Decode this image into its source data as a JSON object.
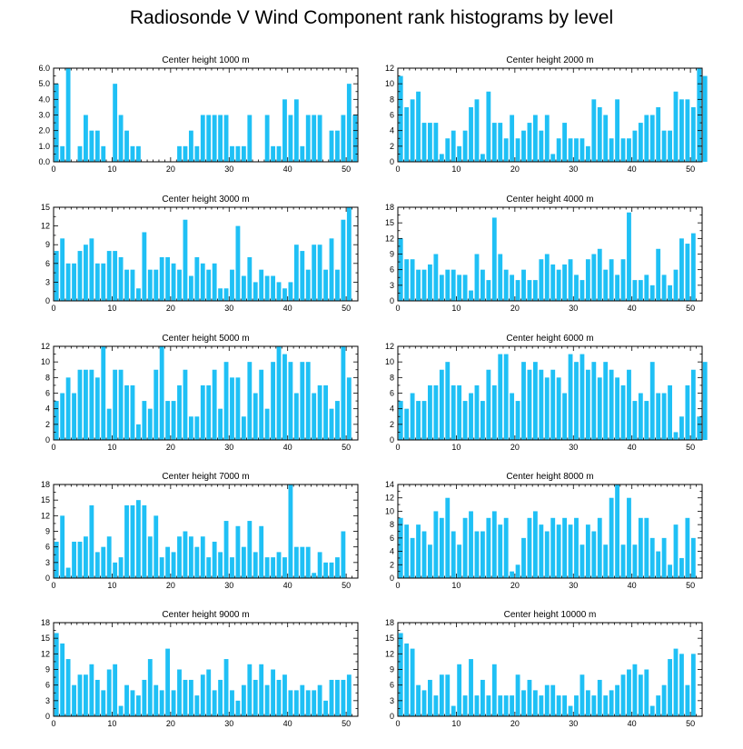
{
  "title": "Radiosonde V Wind Component rank histograms by level",
  "colors": {
    "bar": "#1fc0f5",
    "axis": "#000000",
    "background": "#ffffff"
  },
  "chart_data": [
    {
      "type": "bar",
      "title": "Center height 1000 m",
      "xlim": [
        0,
        52
      ],
      "ylim": [
        0,
        6
      ],
      "xticks": [
        "0",
        "10",
        "20",
        "30",
        "40",
        "50"
      ],
      "yticks": [
        "0.0",
        "1.0",
        "2.0",
        "3.0",
        "4.0",
        "5.0",
        "6.0"
      ],
      "values": [
        5,
        1,
        6,
        0,
        1,
        3,
        2,
        2,
        1,
        0,
        5,
        3,
        2,
        1,
        1,
        0,
        0,
        0,
        0,
        0,
        0,
        1,
        1,
        2,
        1,
        3,
        3,
        3,
        3,
        3,
        1,
        1,
        1,
        3,
        0,
        0,
        3,
        1,
        1,
        4,
        3,
        4,
        1,
        3,
        3,
        3,
        0,
        2,
        2,
        3,
        5,
        3
      ]
    },
    {
      "type": "bar",
      "title": "Center height 2000 m",
      "xlim": [
        0,
        52
      ],
      "ylim": [
        0,
        12
      ],
      "xticks": [
        "0",
        "10",
        "20",
        "30",
        "40",
        "50"
      ],
      "yticks": [
        "0",
        "2",
        "4",
        "6",
        "8",
        "10",
        "12"
      ],
      "values": [
        11,
        7,
        8,
        9,
        5,
        5,
        5,
        1,
        3,
        4,
        2,
        4,
        7,
        8,
        1,
        9,
        5,
        5,
        3,
        6,
        3,
        4,
        5,
        6,
        4,
        6,
        1,
        3,
        5,
        3,
        3,
        3,
        2,
        8,
        7,
        6,
        3,
        8,
        3,
        3,
        4,
        5,
        6,
        6,
        7,
        4,
        4,
        9,
        8,
        8,
        7,
        12,
        11
      ]
    },
    {
      "type": "bar",
      "title": "Center height 3000 m",
      "xlim": [
        0,
        52
      ],
      "ylim": [
        0,
        15
      ],
      "xticks": [
        "0",
        "10",
        "20",
        "30",
        "40",
        "50"
      ],
      "yticks": [
        "0",
        "3",
        "6",
        "9",
        "12",
        "15"
      ],
      "values": [
        8,
        10,
        6,
        6,
        8,
        9,
        10,
        6,
        6,
        8,
        8,
        7,
        5,
        5,
        2,
        11,
        5,
        5,
        7,
        7,
        6,
        5,
        13,
        4,
        7,
        6,
        5,
        6,
        2,
        2,
        5,
        12,
        4,
        7,
        3,
        5,
        4,
        4,
        3,
        2,
        3,
        9,
        8,
        5,
        9,
        9,
        5,
        10,
        5,
        13,
        15
      ]
    },
    {
      "type": "bar",
      "title": "Center height 4000 m",
      "xlim": [
        0,
        52
      ],
      "ylim": [
        0,
        18
      ],
      "xticks": [
        "0",
        "10",
        "20",
        "30",
        "40",
        "50"
      ],
      "yticks": [
        "0",
        "3",
        "6",
        "9",
        "12",
        "15",
        "18"
      ],
      "values": [
        12,
        8,
        8,
        6,
        6,
        7,
        9,
        5,
        6,
        6,
        5,
        5,
        2,
        9,
        6,
        4,
        16,
        9,
        6,
        5,
        4,
        6,
        4,
        4,
        8,
        9,
        7,
        6,
        7,
        8,
        5,
        4,
        8,
        9,
        10,
        6,
        8,
        5,
        8,
        17,
        4,
        4,
        5,
        3,
        10,
        5,
        3,
        6,
        12,
        11,
        13
      ]
    },
    {
      "type": "bar",
      "title": "Center height 5000 m",
      "xlim": [
        0,
        52
      ],
      "ylim": [
        0,
        12
      ],
      "xticks": [
        "0",
        "10",
        "20",
        "30",
        "40",
        "50"
      ],
      "yticks": [
        "0",
        "2",
        "4",
        "6",
        "8",
        "10",
        "12"
      ],
      "values": [
        5,
        6,
        8,
        6,
        9,
        9,
        9,
        8,
        12,
        4,
        9,
        9,
        7,
        7,
        2,
        5,
        4,
        9,
        12,
        5,
        5,
        7,
        9,
        3,
        3,
        7,
        7,
        9,
        4,
        10,
        8,
        8,
        3,
        10,
        6,
        9,
        4,
        10,
        12,
        11,
        10,
        6,
        10,
        10,
        6,
        7,
        7,
        4,
        5,
        12,
        8
      ]
    },
    {
      "type": "bar",
      "title": "Center height 6000 m",
      "xlim": [
        0,
        52
      ],
      "ylim": [
        0,
        12
      ],
      "xticks": [
        "0",
        "10",
        "20",
        "30",
        "40",
        "50"
      ],
      "yticks": [
        "0",
        "2",
        "4",
        "6",
        "8",
        "10",
        "12"
      ],
      "values": [
        5,
        4,
        6,
        5,
        5,
        7,
        7,
        9,
        10,
        7,
        7,
        5,
        6,
        7,
        5,
        9,
        7,
        11,
        11,
        6,
        5,
        10,
        9,
        10,
        9,
        8,
        9,
        8,
        6,
        11,
        10,
        11,
        9,
        10,
        8,
        10,
        9,
        8,
        7,
        9,
        5,
        6,
        5,
        10,
        6,
        6,
        7,
        1,
        3,
        7,
        9,
        3,
        10
      ]
    },
    {
      "type": "bar",
      "title": "Center height 7000 m",
      "xlim": [
        0,
        52
      ],
      "ylim": [
        0,
        18
      ],
      "xticks": [
        "0",
        "10",
        "20",
        "30",
        "40",
        "50"
      ],
      "yticks": [
        "0",
        "3",
        "6",
        "9",
        "12",
        "15",
        "18"
      ],
      "values": [
        7,
        12,
        2,
        7,
        7,
        8,
        14,
        5,
        6,
        8,
        3,
        4,
        14,
        14,
        15,
        14,
        8,
        12,
        4,
        6,
        5,
        8,
        9,
        8,
        6,
        8,
        4,
        7,
        5,
        11,
        4,
        10,
        6,
        11,
        5,
        10,
        4,
        4,
        5,
        4,
        18,
        6,
        6,
        6,
        1,
        5,
        3,
        3,
        4,
        9
      ]
    },
    {
      "type": "bar",
      "title": "Center height 8000 m",
      "xlim": [
        0,
        52
      ],
      "ylim": [
        0,
        14
      ],
      "xticks": [
        "0",
        "10",
        "20",
        "30",
        "40",
        "50"
      ],
      "yticks": [
        "0",
        "2",
        "4",
        "6",
        "8",
        "10",
        "12",
        "14"
      ],
      "values": [
        9,
        8,
        6,
        8,
        7,
        5,
        10,
        9,
        12,
        7,
        5,
        9,
        10,
        7,
        7,
        9,
        10,
        8,
        9,
        1,
        2,
        6,
        9,
        10,
        8,
        7,
        9,
        8,
        9,
        8,
        9,
        5,
        8,
        7,
        9,
        5,
        12,
        14,
        5,
        12,
        5,
        9,
        9,
        6,
        4,
        6,
        2,
        8,
        3,
        9,
        6
      ]
    },
    {
      "type": "bar",
      "title": "Center height 9000 m",
      "xlim": [
        0,
        52
      ],
      "ylim": [
        0,
        18
      ],
      "xticks": [
        "0",
        "10",
        "20",
        "30",
        "40",
        "50"
      ],
      "yticks": [
        "0",
        "3",
        "6",
        "9",
        "12",
        "15",
        "18"
      ],
      "values": [
        16,
        14,
        11,
        6,
        8,
        8,
        10,
        7,
        5,
        9,
        10,
        2,
        6,
        5,
        4,
        7,
        11,
        6,
        5,
        13,
        5,
        9,
        7,
        7,
        4,
        8,
        9,
        5,
        7,
        11,
        5,
        3,
        6,
        10,
        7,
        10,
        6,
        9,
        7,
        8,
        5,
        5,
        6,
        5,
        5,
        6,
        3,
        7,
        7,
        7,
        8
      ]
    },
    {
      "type": "bar",
      "title": "Center height 10000 m",
      "xlim": [
        0,
        52
      ],
      "ylim": [
        0,
        18
      ],
      "xticks": [
        "0",
        "10",
        "20",
        "30",
        "40",
        "50"
      ],
      "yticks": [
        "0",
        "3",
        "6",
        "9",
        "12",
        "15",
        "18"
      ],
      "values": [
        16,
        14,
        13,
        6,
        5,
        7,
        4,
        8,
        8,
        2,
        10,
        4,
        11,
        4,
        7,
        4,
        10,
        4,
        4,
        4,
        8,
        5,
        7,
        5,
        4,
        6,
        6,
        4,
        4,
        2,
        4,
        8,
        5,
        4,
        7,
        4,
        5,
        6,
        8,
        9,
        10,
        8,
        9,
        2,
        4,
        6,
        11,
        13,
        12,
        6,
        12
      ]
    }
  ]
}
